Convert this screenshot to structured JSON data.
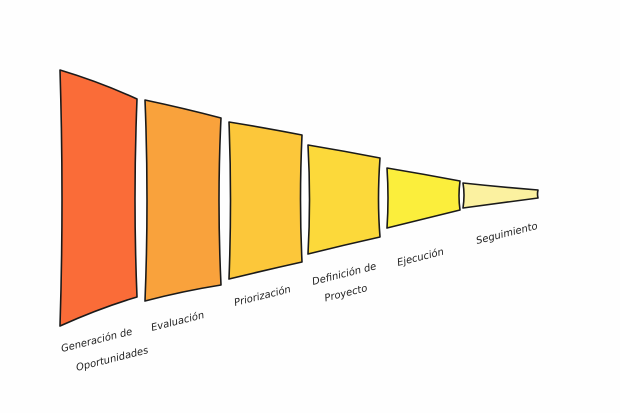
{
  "stages": [
    {
      "lines": [
        "Generación de",
        "Oportunidades"
      ]
    },
    {
      "lines": [
        "Evaluación"
      ]
    },
    {
      "lines": [
        "Priorización"
      ]
    },
    {
      "lines": [
        "Definición de",
        "Proyecto"
      ]
    },
    {
      "lines": [
        "Ejecución"
      ]
    },
    {
      "lines": [
        "Seguimiento"
      ]
    }
  ]
}
